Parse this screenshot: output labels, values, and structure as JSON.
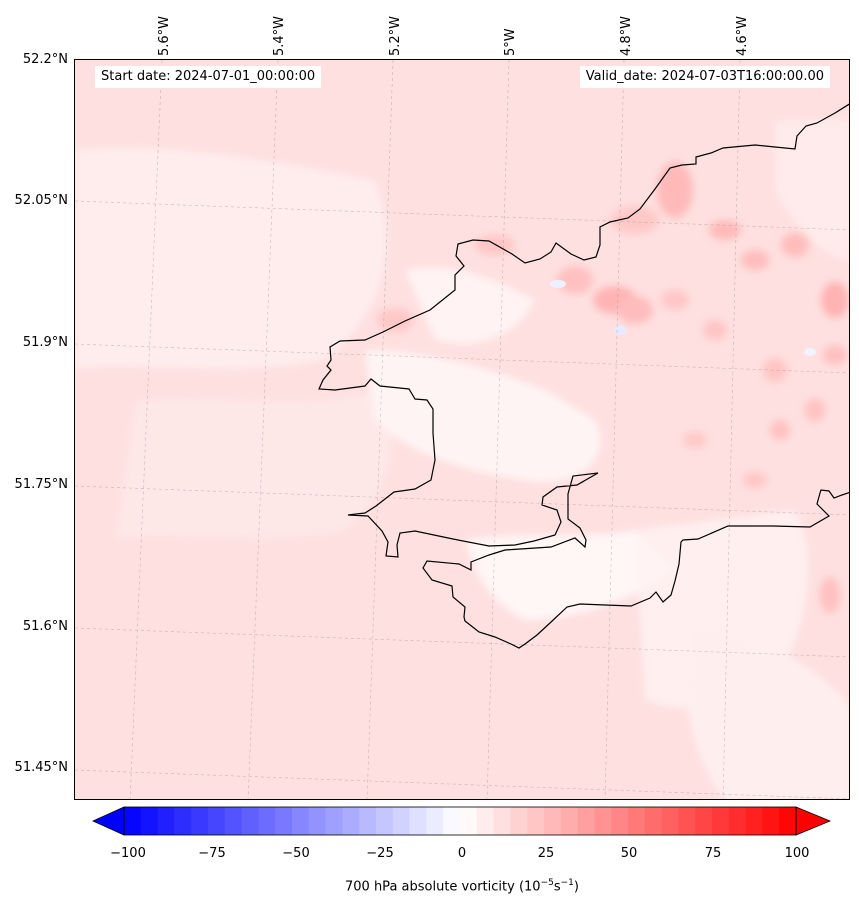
{
  "map": {
    "start_date_label": "Start date: 2024-07-01_00:00:00",
    "valid_date_label": "Valid_date: 2024-07-03T16:00:00.00",
    "latitude_labels": [
      "52.2°N",
      "52.05°N",
      "51.9°N",
      "51.75°N",
      "51.6°N",
      "51.45°N"
    ],
    "longitude_labels": [
      "5.6°W",
      "5.4°W",
      "5.2°W",
      "5°W",
      "4.8°W",
      "4.6°W"
    ],
    "variable": "700 hPa absolute vorticity",
    "units": "(10−5s−1)",
    "field_range": [
      -100,
      100
    ],
    "gridlines": true,
    "coastline_color": "#000000"
  },
  "colorbar": {
    "tick_labels": [
      "−100",
      "−75",
      "−50",
      "−25",
      "0",
      "25",
      "50",
      "75",
      "100"
    ],
    "label_text": "700 hPa absolute vorticity (",
    "label_units_base": "10",
    "label_units_exp1": "−5",
    "label_units_mid": "s",
    "label_units_exp2": "−1",
    "label_close": ")",
    "colormap": "bwr",
    "extend": "both",
    "low_color": "#0000ff",
    "mid_color": "#ffffff",
    "high_color": "#ff0000"
  }
}
